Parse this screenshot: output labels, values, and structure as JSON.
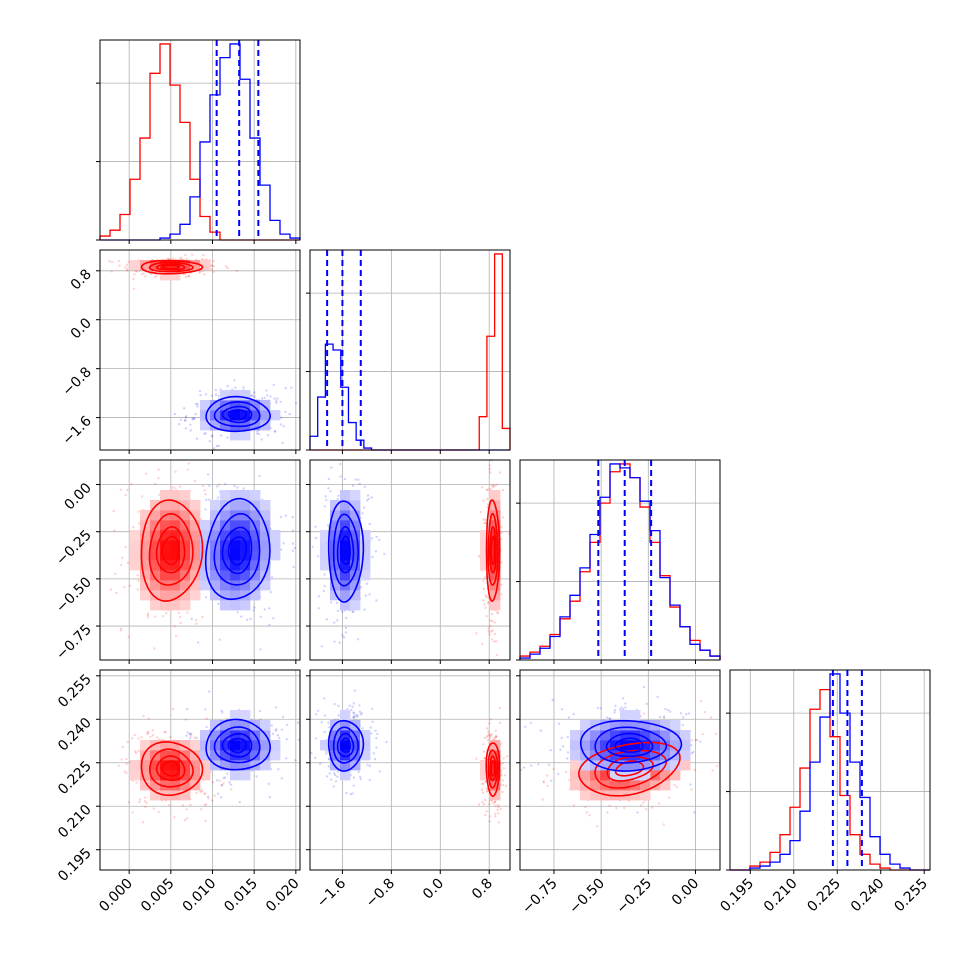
{
  "chart_data": {
    "type": "corner",
    "parameters": [
      {
        "range": [
          -0.0035,
          0.0205
        ],
        "ticks": [
          0.0,
          0.005,
          0.01,
          0.015,
          0.02
        ],
        "tick_labels": [
          "0.000",
          "0.005",
          "0.010",
          "0.015",
          "0.020"
        ]
      },
      {
        "range": [
          -2.13,
          1.14
        ],
        "ticks": [
          -1.6,
          -0.8,
          0.0,
          0.8
        ],
        "tick_labels": [
          "−1.6",
          "−0.8",
          "0.0",
          "0.8"
        ]
      },
      {
        "range": [
          -0.93,
          0.13
        ],
        "ticks": [
          -0.75,
          -0.5,
          -0.25,
          0.0
        ],
        "tick_labels": [
          "−0.75",
          "−0.50",
          "−0.25",
          "0.00"
        ]
      },
      {
        "range": [
          0.188,
          0.257
        ],
        "ticks": [
          0.195,
          0.21,
          0.225,
          0.24,
          0.255
        ],
        "tick_labels": [
          "0.195",
          "0.210",
          "0.225",
          "0.240",
          "0.255"
        ]
      }
    ],
    "grid": true,
    "series": [
      {
        "color": "#ff0000",
        "means": [
          0.005,
          0.86,
          -0.35,
          0.223
        ],
        "sds": [
          0.0022,
          0.065,
          0.16,
          0.0055
        ],
        "corr": [
          [
            1,
            0,
            0.05,
            -0.05
          ],
          [
            0,
            1,
            0,
            0
          ],
          [
            0.05,
            0,
            1,
            0.3
          ],
          [
            -0.05,
            0,
            0.3,
            1
          ]
        ],
        "hist_weights": [
          [
            0.02,
            0.05,
            0.13,
            0.31,
            0.52,
            0.85,
            1.0,
            0.79,
            0.6,
            0.31,
            0.12,
            0.04,
            0.0,
            0.0,
            0.0,
            0.0,
            0.0,
            0.0,
            0.0,
            0.0
          ],
          [
            0.0,
            0.0,
            0.0,
            0.0,
            0.0,
            0.0,
            0.0,
            0.0,
            0.0,
            0.0,
            0.0,
            0.0,
            0.0,
            0.0,
            0.0,
            0.0,
            0.0,
            0.0,
            0.0,
            0.0,
            0.0,
            0.0,
            0.17,
            0.58,
            1.0,
            0.11
          ],
          [
            0.02,
            0.04,
            0.07,
            0.13,
            0.21,
            0.3,
            0.45,
            0.6,
            0.8,
            0.96,
            1.0,
            0.93,
            0.78,
            0.6,
            0.43,
            0.27,
            0.17,
            0.1,
            0.05,
            0.02
          ],
          [
            0.0,
            0.0,
            0.02,
            0.04,
            0.09,
            0.18,
            0.32,
            0.52,
            0.82,
            0.92,
            0.68,
            0.38,
            0.18,
            0.08,
            0.03,
            0.01,
            0.0,
            0.0,
            0.0,
            0.0
          ]
        ]
      },
      {
        "color": "#0000ff",
        "means": [
          0.013,
          -1.55,
          -0.35,
          0.231
        ],
        "sds": [
          0.0023,
          0.17,
          0.16,
          0.0052
        ],
        "corr": [
          [
            1,
            0,
            0.1,
            0
          ],
          [
            0,
            1,
            0,
            0
          ],
          [
            0.1,
            0,
            1,
            0
          ],
          [
            0,
            0,
            0,
            1
          ]
        ],
        "hist_weights": [
          [
            0.0,
            0.0,
            0.0,
            0.0,
            0.0,
            0.0,
            0.01,
            0.03,
            0.08,
            0.22,
            0.5,
            0.74,
            0.93,
            1.0,
            0.82,
            0.52,
            0.28,
            0.1,
            0.03,
            0.01
          ],
          [
            0.07,
            0.27,
            0.54,
            0.51,
            0.32,
            0.14,
            0.05,
            0.01,
            0.0,
            0.0,
            0.0,
            0.0,
            0.0,
            0.0,
            0.0,
            0.0,
            0.0,
            0.0,
            0.0,
            0.0,
            0.0,
            0.0,
            0.0,
            0.0,
            0.0,
            0.0
          ],
          [
            0.01,
            0.03,
            0.06,
            0.12,
            0.22,
            0.33,
            0.47,
            0.64,
            0.83,
            1.0,
            0.98,
            0.93,
            0.81,
            0.66,
            0.42,
            0.28,
            0.17,
            0.08,
            0.05,
            0.02
          ],
          [
            0.0,
            0.0,
            0.01,
            0.02,
            0.04,
            0.08,
            0.15,
            0.3,
            0.55,
            0.78,
            1.0,
            0.8,
            0.55,
            0.37,
            0.17,
            0.08,
            0.03,
            0.01,
            0.0,
            0.0
          ]
        ]
      }
    ],
    "quantile_lines": {
      "color": "#0000ff",
      "style": "dashed",
      "values": [
        [
          0.0105,
          0.0132,
          0.0155
        ],
        [
          -1.85,
          -1.6,
          -1.3
        ],
        [
          -0.515,
          -0.375,
          -0.235
        ],
        [
          0.2235,
          0.2285,
          0.2335
        ]
      ]
    }
  }
}
